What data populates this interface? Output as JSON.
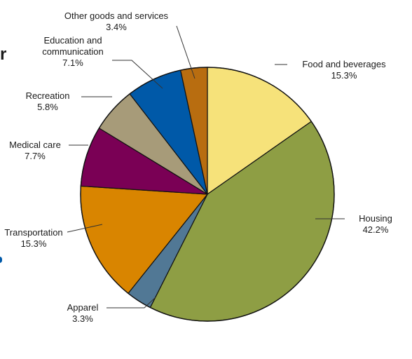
{
  "chart_data": {
    "type": "pie",
    "title": "",
    "start_angle_deg": 0,
    "direction": "clockwise",
    "slices": [
      {
        "label": "Food and beverages",
        "value": 15.3,
        "display": "15.3%",
        "color": "#f6e27a"
      },
      {
        "label": "Housing",
        "value": 42.2,
        "display": "42.2%",
        "color": "#8e9e44"
      },
      {
        "label": "Apparel",
        "value": 3.3,
        "display": "3.3%",
        "color": "#517895"
      },
      {
        "label": "Transportation",
        "value": 15.3,
        "display": "15.3%",
        "color": "#d98500"
      },
      {
        "label": "Medical care",
        "value": 7.7,
        "display": "7.7%",
        "color": "#7a0055"
      },
      {
        "label": "Recreation",
        "value": 5.8,
        "display": "5.8%",
        "color": "#a79b79"
      },
      {
        "label": "Education and communication",
        "value": 7.1,
        "display": "7.1%",
        "color": "#0059a8"
      },
      {
        "label": "Other goods and services",
        "value": 3.4,
        "display": "3.4%",
        "color": "#b86d10"
      }
    ]
  },
  "edge_fragments": {
    "left_letter": "r",
    "left_dot_color": "#0059a8"
  }
}
